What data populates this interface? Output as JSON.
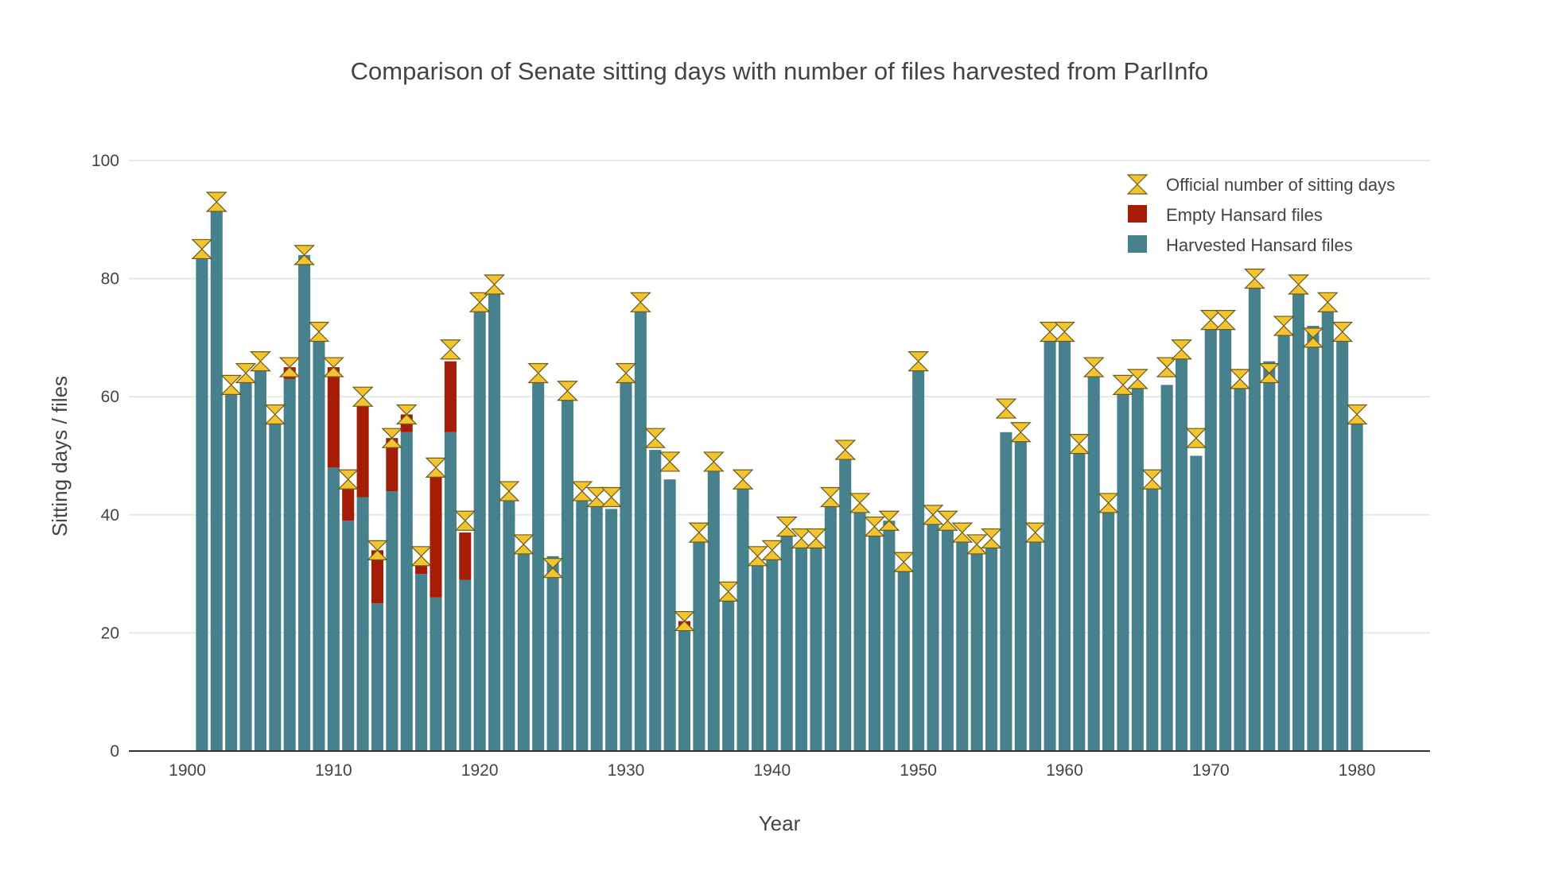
{
  "chart_data": {
    "type": "bar",
    "mode": "stacked",
    "title": "Comparison of Senate sitting days with number of files harvested from ParlInfo",
    "xlabel": "Year",
    "ylabel": "Sitting days / files",
    "xlim": [
      1896,
      1985
    ],
    "ylim": [
      0,
      100
    ],
    "xticks": [
      1900,
      1910,
      1920,
      1930,
      1940,
      1950,
      1960,
      1970,
      1980
    ],
    "yticks": [
      0,
      20,
      40,
      60,
      80,
      100
    ],
    "grid": true,
    "legend_position": "top-right",
    "years": [
      1901,
      1902,
      1903,
      1904,
      1905,
      1906,
      1907,
      1908,
      1909,
      1910,
      1911,
      1912,
      1913,
      1914,
      1915,
      1916,
      1917,
      1918,
      1919,
      1920,
      1921,
      1922,
      1923,
      1924,
      1925,
      1926,
      1927,
      1928,
      1929,
      1930,
      1931,
      1932,
      1933,
      1934,
      1935,
      1936,
      1937,
      1938,
      1939,
      1940,
      1941,
      1942,
      1943,
      1944,
      1945,
      1946,
      1947,
      1948,
      1949,
      1950,
      1951,
      1952,
      1953,
      1954,
      1955,
      1956,
      1957,
      1958,
      1959,
      1960,
      1961,
      1962,
      1963,
      1964,
      1965,
      1966,
      1967,
      1968,
      1969,
      1970,
      1971,
      1972,
      1973,
      1974,
      1975,
      1976,
      1977,
      1978,
      1979,
      1980
    ],
    "series": [
      {
        "name": "Official number of sitting days",
        "kind": "marker",
        "color": "#f2c530",
        "values": [
          85,
          93,
          62,
          64,
          66,
          57,
          65,
          84,
          71,
          65,
          46,
          60,
          34,
          53,
          57,
          33,
          48,
          68,
          39,
          76,
          79,
          44,
          35,
          64,
          31,
          61,
          44,
          43,
          43,
          64,
          76,
          53,
          49,
          22,
          37,
          49,
          27,
          46,
          33,
          34,
          38,
          36,
          36,
          43,
          51,
          42,
          38,
          39,
          32,
          66,
          40,
          39,
          37,
          35,
          36,
          58,
          54,
          37,
          71,
          71,
          52,
          65,
          42,
          62,
          63,
          46,
          65,
          68,
          53,
          73,
          73,
          63,
          80,
          64,
          72,
          79,
          70,
          76,
          71,
          57
        ]
      },
      {
        "name": "Empty Hansard files",
        "kind": "bar",
        "color": "#a61d07",
        "values": [
          0,
          0,
          0,
          0,
          0,
          0,
          2,
          0,
          0,
          17,
          6,
          16,
          9,
          9,
          3,
          2,
          21,
          12,
          8,
          0,
          0,
          0,
          0,
          0,
          0,
          0,
          0,
          0,
          0,
          0,
          0,
          0,
          0,
          1,
          0,
          0,
          0,
          0,
          0,
          0,
          0,
          0,
          0,
          0,
          0,
          0,
          0,
          0,
          0,
          0,
          0,
          0,
          0,
          0,
          0,
          0,
          0,
          0,
          0,
          0,
          0,
          0,
          0,
          0,
          0,
          0,
          0,
          0,
          0,
          0,
          0,
          0,
          0,
          0,
          0,
          0,
          0,
          0,
          0,
          0
        ]
      },
      {
        "name": "Harvested Hansard files",
        "kind": "bar",
        "color": "#48818e",
        "values": [
          84,
          92,
          61,
          63,
          65,
          56,
          63,
          84,
          70,
          48,
          39,
          43,
          25,
          44,
          54,
          30,
          26,
          54,
          29,
          75,
          78,
          43,
          34,
          63,
          33,
          60,
          43,
          42,
          41,
          63,
          75,
          51,
          46,
          21,
          36,
          48,
          26,
          45,
          32,
          33,
          37,
          35,
          35,
          42,
          50,
          41,
          37,
          39,
          31,
          65,
          39,
          38,
          36,
          34,
          35,
          54,
          53,
          36,
          70,
          70,
          51,
          64,
          41,
          61,
          62,
          45,
          62,
          67,
          50,
          72,
          72,
          62,
          79,
          66,
          71,
          78,
          72,
          75,
          70,
          56
        ]
      }
    ],
    "legend_order": [
      "Official number of sitting days",
      "Empty Hansard files",
      "Harvested Hansard files"
    ]
  }
}
